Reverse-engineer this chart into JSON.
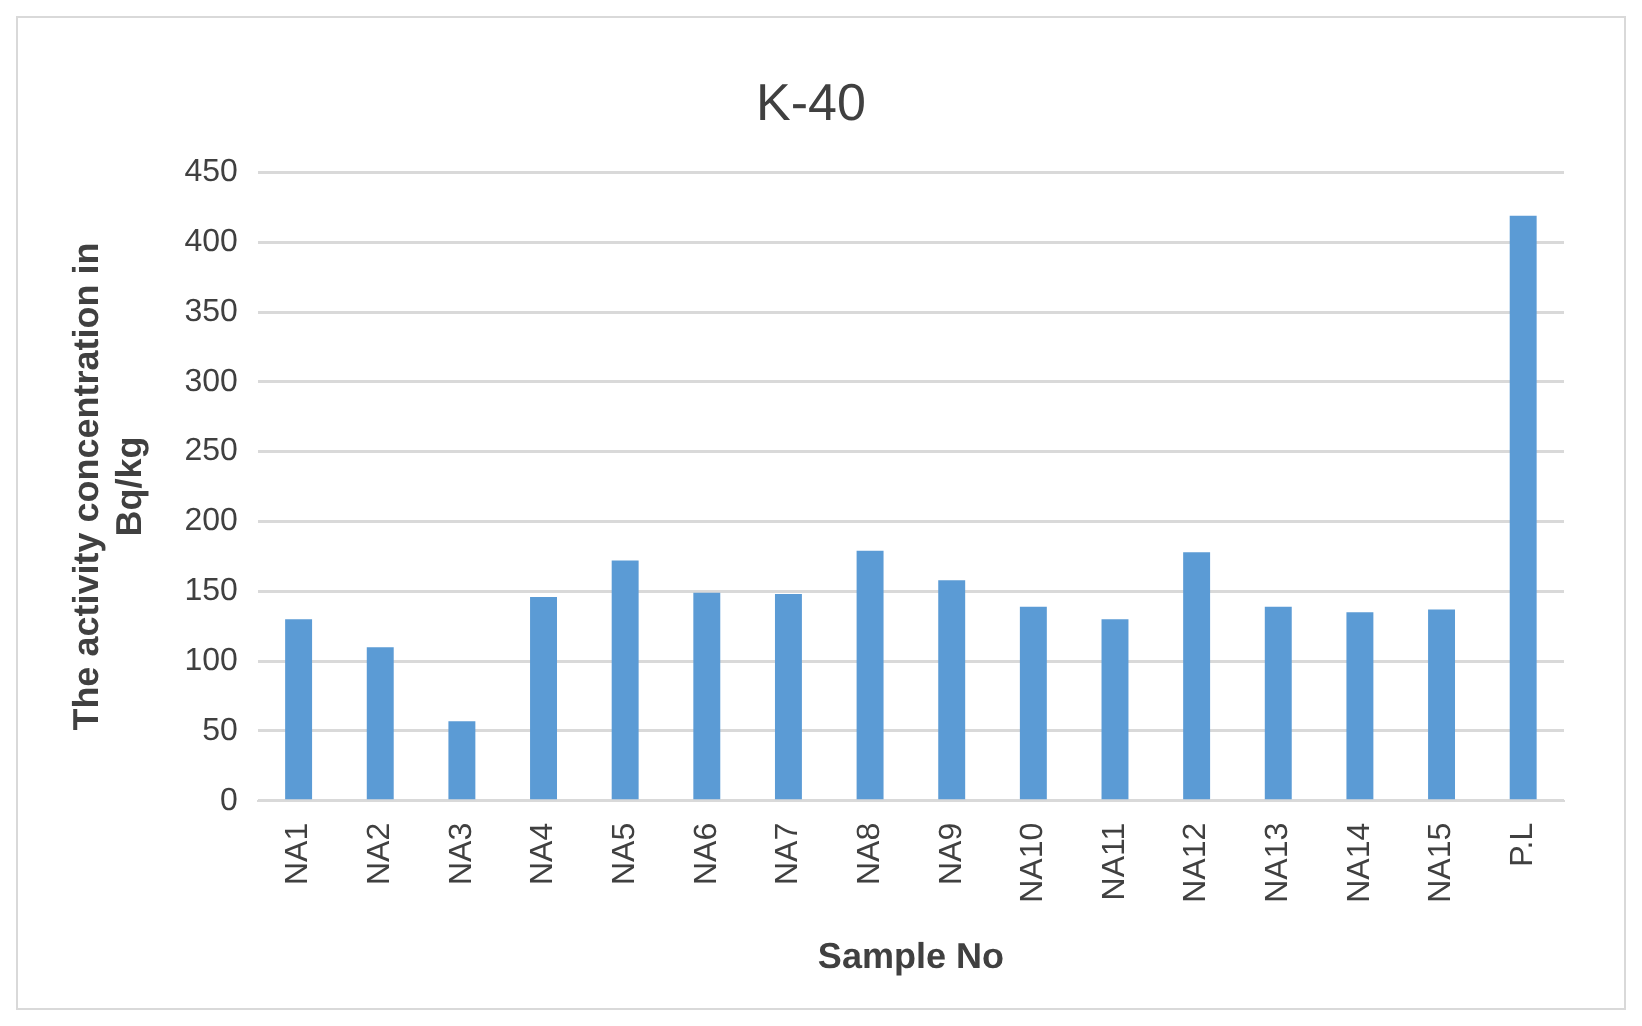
{
  "chart_data": {
    "type": "bar",
    "title": "K-40",
    "xlabel": "Sample No",
    "ylabel": "The activity concentration in Bq/kg",
    "categories": [
      "NA1",
      "NA2",
      "NA3",
      "NA4",
      "NA5",
      "NA6",
      "NA7",
      "NA8",
      "NA9",
      "NA10",
      "NA11",
      "NA12",
      "NA13",
      "NA14",
      "NA15",
      "P.L"
    ],
    "values": [
      130,
      110,
      57,
      146,
      172,
      149,
      148,
      179,
      158,
      139,
      130,
      178,
      139,
      135,
      137,
      419
    ],
    "color": "#5b9bd5",
    "ylim": [
      0,
      450
    ],
    "yticks": [
      0,
      50,
      100,
      150,
      200,
      250,
      300,
      350,
      400,
      450
    ],
    "grid": "y"
  }
}
